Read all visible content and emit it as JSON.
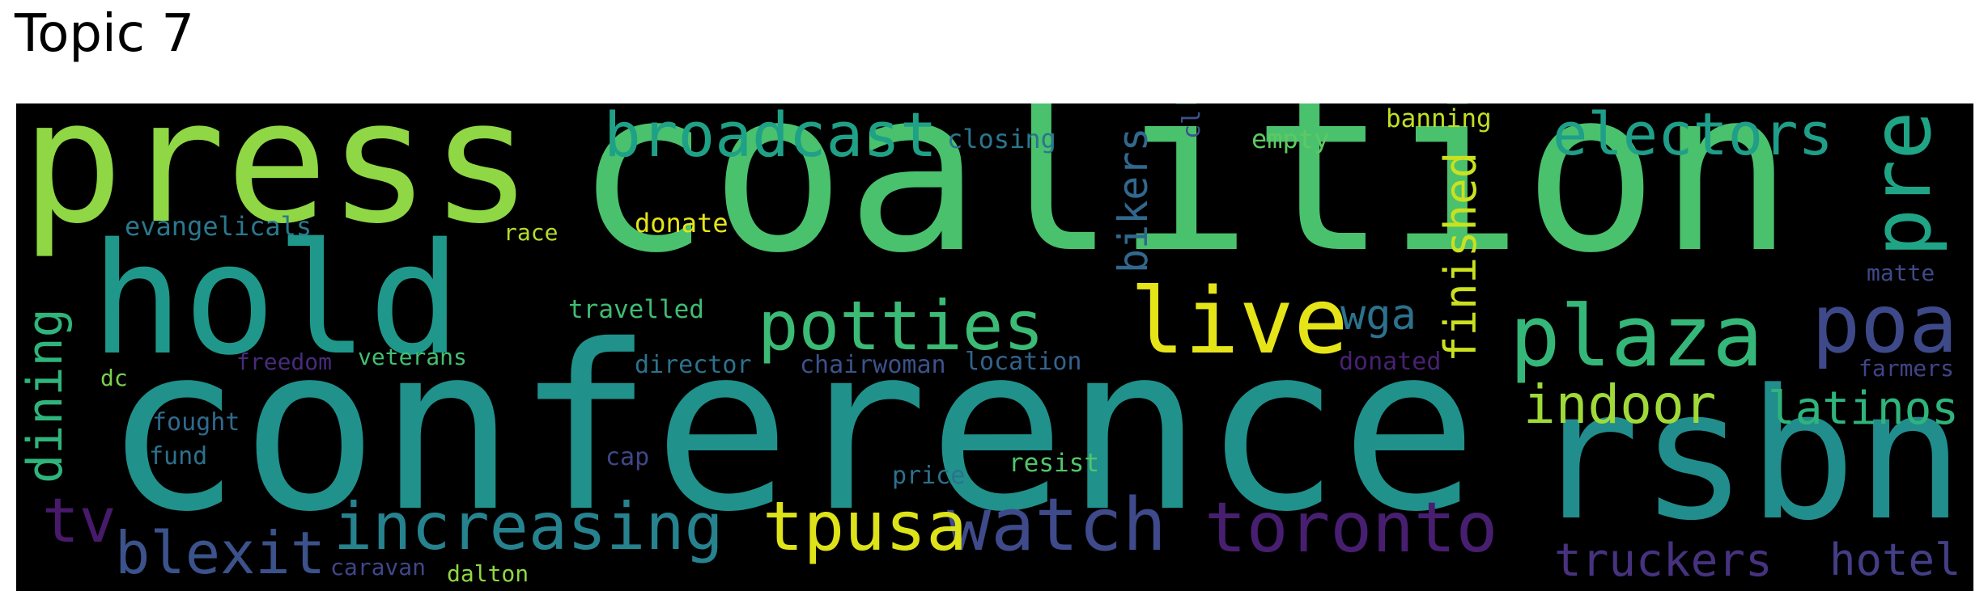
{
  "title": "Topic 7",
  "words": [
    {
      "text": "press",
      "color": "#8fd744"
    },
    {
      "text": "coalition",
      "color": "#4ac16d"
    },
    {
      "text": "conference",
      "color": "#21918c"
    },
    {
      "text": "hold",
      "color": "#1f988b"
    },
    {
      "text": "rsbn",
      "color": "#228d8d"
    },
    {
      "text": "broadcast",
      "color": "#1fa187"
    },
    {
      "text": "potties",
      "color": "#3bbb75"
    },
    {
      "text": "live",
      "color": "#e5e419"
    },
    {
      "text": "plaza",
      "color": "#35b779"
    },
    {
      "text": "poa",
      "color": "#3e4989"
    },
    {
      "text": "electors",
      "color": "#1f9e89"
    },
    {
      "text": "pre",
      "color": "#20a486"
    },
    {
      "text": "watch",
      "color": "#3e4a89"
    },
    {
      "text": "toronto",
      "color": "#481f70"
    },
    {
      "text": "tpusa",
      "color": "#dde318"
    },
    {
      "text": "increasing",
      "color": "#26828e"
    },
    {
      "text": "blexit",
      "color": "#3b528b"
    },
    {
      "text": "indoor",
      "color": "#a0da39"
    },
    {
      "text": "latinos",
      "color": "#2fb47c"
    },
    {
      "text": "truckers",
      "color": "#46327e"
    },
    {
      "text": "hotel",
      "color": "#433e85"
    },
    {
      "text": "dining",
      "color": "#2fb47c"
    },
    {
      "text": "tv",
      "color": "#481a6c"
    },
    {
      "text": "finished",
      "color": "#cae11f"
    },
    {
      "text": "bikers",
      "color": "#31688e"
    },
    {
      "text": "wga",
      "color": "#2c728e"
    },
    {
      "text": "evangelicals",
      "color": "#2a788e"
    },
    {
      "text": "race",
      "color": "#b5de2b"
    },
    {
      "text": "donate",
      "color": "#e5e419"
    },
    {
      "text": "closing",
      "color": "#2a768e"
    },
    {
      "text": "empty",
      "color": "#5ec962"
    },
    {
      "text": "banning",
      "color": "#c2df23"
    },
    {
      "text": "cl",
      "color": "#3b528b"
    },
    {
      "text": "travelled",
      "color": "#3fbc73"
    },
    {
      "text": "freedom",
      "color": "#472c7a"
    },
    {
      "text": "veterans",
      "color": "#44bf70"
    },
    {
      "text": "director",
      "color": "#2c728e"
    },
    {
      "text": "chairwoman",
      "color": "#3b528b"
    },
    {
      "text": "location",
      "color": "#33638d"
    },
    {
      "text": "donated",
      "color": "#482173"
    },
    {
      "text": "farmers",
      "color": "#414487"
    },
    {
      "text": "matte",
      "color": "#3e4a89"
    },
    {
      "text": "dc",
      "color": "#7ad151"
    },
    {
      "text": "fought",
      "color": "#306a8e"
    },
    {
      "text": "fund",
      "color": "#2d708e"
    },
    {
      "text": "cap",
      "color": "#3f4788"
    },
    {
      "text": "price",
      "color": "#2c728e"
    },
    {
      "text": "resist",
      "color": "#52c569"
    },
    {
      "text": "caravan",
      "color": "#404688"
    },
    {
      "text": "dalton",
      "color": "#90d743"
    }
  ]
}
